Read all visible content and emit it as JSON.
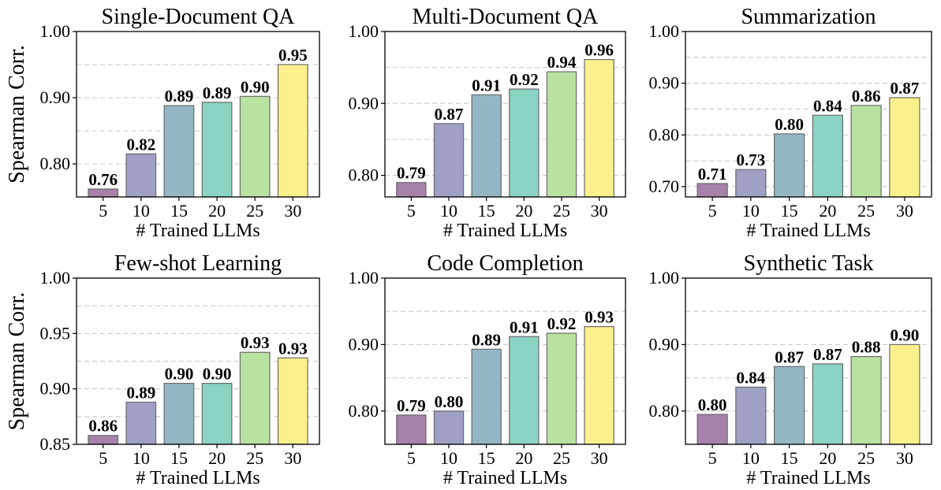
{
  "chart_data": [
    {
      "type": "bar",
      "title": "Single-Document QA",
      "xlabel": "# Trained LLMs",
      "ylabel": "Spearman Corr.",
      "categories": [
        "5",
        "10",
        "15",
        "20",
        "25",
        "30"
      ],
      "values": [
        0.762,
        0.815,
        0.888,
        0.893,
        0.902,
        0.95
      ],
      "value_labels": [
        "0.76",
        "0.82",
        "0.89",
        "0.89",
        "0.90",
        "0.95"
      ],
      "ylim": [
        0.75,
        1.0
      ],
      "yticks": [
        0.8,
        0.9,
        1.0
      ],
      "ytick_labels": [
        "0.80",
        "0.90",
        "1.00"
      ],
      "grid_minor": [
        0.85,
        0.95
      ]
    },
    {
      "type": "bar",
      "title": "Multi-Document QA",
      "xlabel": "# Trained LLMs",
      "ylabel": "",
      "categories": [
        "5",
        "10",
        "15",
        "20",
        "25",
        "30"
      ],
      "values": [
        0.79,
        0.872,
        0.912,
        0.92,
        0.944,
        0.961
      ],
      "value_labels": [
        "0.79",
        "0.87",
        "0.91",
        "0.92",
        "0.94",
        "0.96"
      ],
      "ylim": [
        0.77,
        1.0
      ],
      "yticks": [
        0.8,
        0.9,
        1.0
      ],
      "ytick_labels": [
        "0.80",
        "0.90",
        "1.00"
      ],
      "grid_minor": [
        0.85,
        0.95
      ]
    },
    {
      "type": "bar",
      "title": "Summarization",
      "xlabel": "# Trained LLMs",
      "ylabel": "",
      "categories": [
        "5",
        "10",
        "15",
        "20",
        "25",
        "30"
      ],
      "values": [
        0.706,
        0.733,
        0.802,
        0.838,
        0.857,
        0.872
      ],
      "value_labels": [
        "0.71",
        "0.73",
        "0.80",
        "0.84",
        "0.86",
        "0.87"
      ],
      "ylim": [
        0.68,
        1.0
      ],
      "yticks": [
        0.7,
        0.8,
        0.9,
        1.0
      ],
      "ytick_labels": [
        "0.70",
        "0.80",
        "0.90",
        "1.00"
      ],
      "grid_minor": [
        0.75,
        0.85,
        0.95
      ]
    },
    {
      "type": "bar",
      "title": "Few-shot Learning",
      "xlabel": "# Trained LLMs",
      "ylabel": "Spearman Corr.",
      "categories": [
        "5",
        "10",
        "15",
        "20",
        "25",
        "30"
      ],
      "values": [
        0.858,
        0.888,
        0.905,
        0.905,
        0.933,
        0.928
      ],
      "value_labels": [
        "0.86",
        "0.89",
        "0.90",
        "0.90",
        "0.93",
        "0.93"
      ],
      "ylim": [
        0.85,
        1.0
      ],
      "yticks": [
        0.85,
        0.9,
        0.95,
        1.0
      ],
      "ytick_labels": [
        "0.85",
        "0.90",
        "0.95",
        "1.00"
      ],
      "grid_minor": [
        0.875,
        0.925,
        0.975
      ]
    },
    {
      "type": "bar",
      "title": "Code Completion",
      "xlabel": "# Trained LLMs",
      "ylabel": "",
      "categories": [
        "5",
        "10",
        "15",
        "20",
        "25",
        "30"
      ],
      "values": [
        0.794,
        0.8,
        0.893,
        0.912,
        0.917,
        0.927
      ],
      "value_labels": [
        "0.79",
        "0.80",
        "0.89",
        "0.91",
        "0.92",
        "0.93"
      ],
      "ylim": [
        0.75,
        1.0
      ],
      "yticks": [
        0.8,
        0.9,
        1.0
      ],
      "ytick_labels": [
        "0.80",
        "0.90",
        "1.00"
      ],
      "grid_minor": [
        0.85,
        0.95
      ]
    },
    {
      "type": "bar",
      "title": "Synthetic Task",
      "xlabel": "# Trained LLMs",
      "ylabel": "",
      "categories": [
        "5",
        "10",
        "15",
        "20",
        "25",
        "30"
      ],
      "values": [
        0.795,
        0.836,
        0.867,
        0.871,
        0.882,
        0.9
      ],
      "value_labels": [
        "0.80",
        "0.84",
        "0.87",
        "0.87",
        "0.88",
        "0.90"
      ],
      "ylim": [
        0.75,
        1.0
      ],
      "yticks": [
        0.8,
        0.9,
        1.0
      ],
      "ytick_labels": [
        "0.80",
        "0.90",
        "1.00"
      ],
      "grid_minor": [
        0.85,
        0.95
      ]
    }
  ],
  "bar_colors": [
    "#a681aa",
    "#a09fc6",
    "#93b7c4",
    "#8bd3c3",
    "#b9e2a1",
    "#fcf08c"
  ],
  "grid": true
}
